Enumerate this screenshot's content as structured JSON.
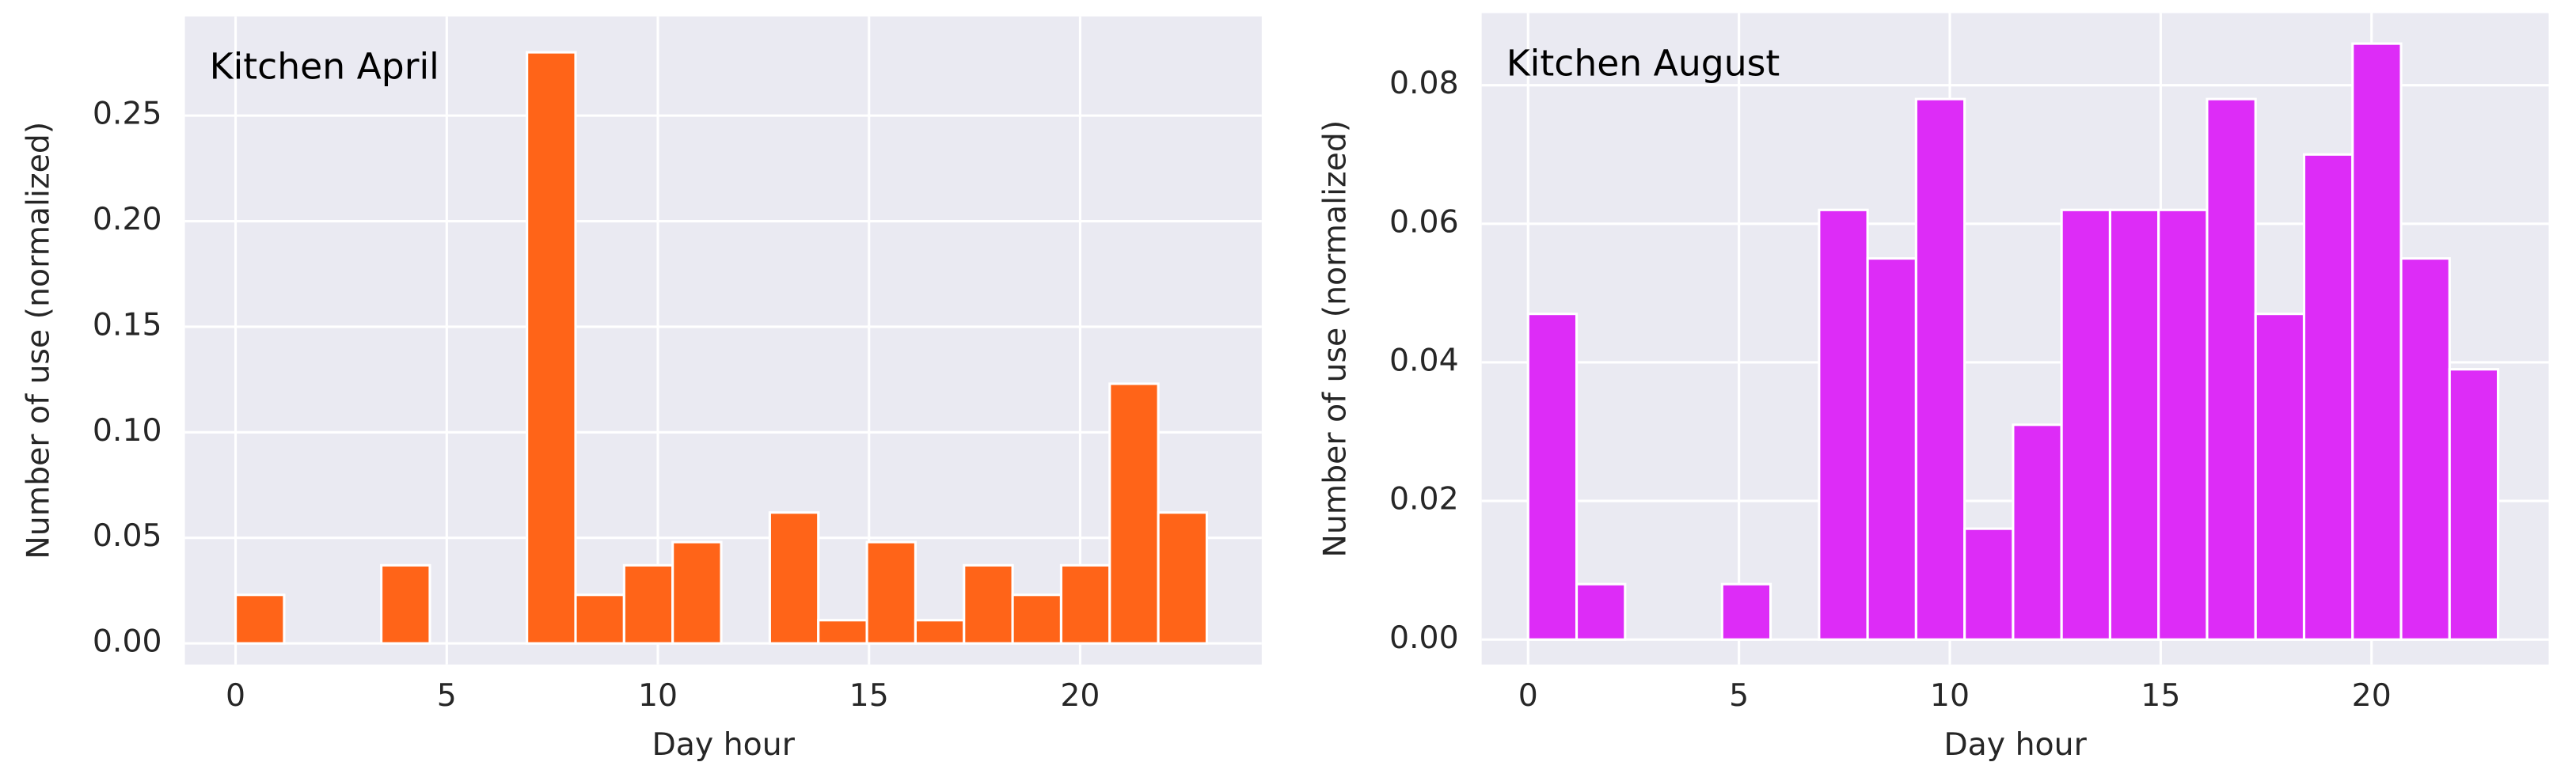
{
  "chart_data": [
    {
      "type": "histogram",
      "title": "Kitchen April",
      "xlabel": "Day hour",
      "ylabel": "Number of use (normalized)",
      "bins": [
        0,
        1.15,
        2.3,
        3.45,
        4.6,
        5.75,
        6.9,
        8.05,
        9.2,
        10.35,
        11.5,
        12.65,
        13.8,
        14.95,
        16.1,
        17.25,
        18.4,
        19.55,
        20.7,
        21.85,
        23
      ],
      "values": [
        0.023,
        0,
        0,
        0.037,
        0,
        0,
        0.28,
        0.023,
        0.037,
        0.048,
        0,
        0.062,
        0.011,
        0.048,
        0.011,
        0.037,
        0.023,
        0.037,
        0.123,
        0.062
      ],
      "color": "#ff6418",
      "xlim": [
        -1.2,
        24.3
      ],
      "ylim": [
        -0.01,
        0.297
      ],
      "xticks": [
        0,
        5,
        10,
        15,
        20
      ],
      "yticks": [
        {
          "value": 0,
          "label": "0.00"
        },
        0.05,
        {
          "value": 0.1,
          "label": "0.10"
        },
        0.15,
        {
          "value": 0.2,
          "label": "0.20"
        },
        0.25
      ],
      "grid": true
    },
    {
      "type": "histogram",
      "title": "Kitchen August",
      "xlabel": "Day hour",
      "ylabel": "Number of use (normalized)",
      "bins": [
        0,
        1.15,
        2.3,
        3.45,
        4.6,
        5.75,
        6.9,
        8.05,
        9.2,
        10.35,
        11.5,
        12.65,
        13.8,
        14.95,
        16.1,
        17.25,
        18.4,
        19.55,
        20.7,
        21.85,
        23
      ],
      "values": [
        0.047,
        0.008,
        0,
        0,
        0.008,
        0,
        0.062,
        0.055,
        0.078,
        0.016,
        0.031,
        0.062,
        0.062,
        0.062,
        0.078,
        0.047,
        0.07,
        0.086,
        0.055,
        0.039
      ],
      "color": "#dd2cf7",
      "xlim": [
        -1.1,
        24.2
      ],
      "ylim": [
        -0.0036,
        0.0904
      ],
      "xticks": [
        0,
        5,
        10,
        15,
        20
      ],
      "yticks": [
        {
          "value": 0,
          "label": "0.00"
        },
        0.02,
        0.04,
        0.06,
        0.08
      ],
      "grid": true
    }
  ]
}
